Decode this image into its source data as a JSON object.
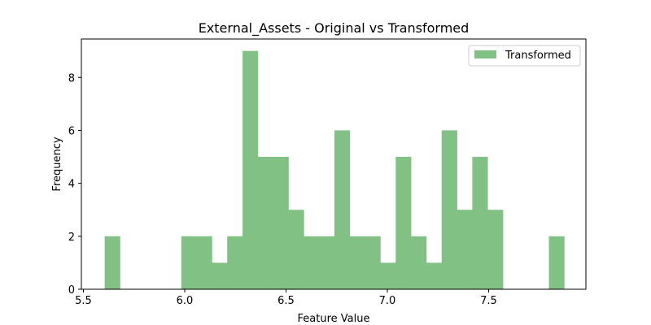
{
  "chart_data": {
    "type": "bar",
    "title": "External_Assets - Original vs Transformed",
    "xlabel": "Feature Value",
    "ylabel": "Frequency",
    "xlim": [
      5.49,
      7.98
    ],
    "ylim": [
      0,
      9.45
    ],
    "xticks": [
      5.5,
      6.0,
      6.5,
      7.0,
      7.5
    ],
    "xtick_labels": [
      "5.5",
      "6.0",
      "6.5",
      "7.0",
      "7.5"
    ],
    "yticks": [
      0,
      2,
      4,
      6,
      8
    ],
    "ytick_labels": [
      "0",
      "2",
      "4",
      "6",
      "8"
    ],
    "grid": false,
    "legend_position": "top-right",
    "series": [
      {
        "name": "Transformed",
        "color": "#81c184",
        "bin_start": 5.605,
        "bin_width": 0.0756,
        "values": [
          2,
          0,
          0,
          0,
          0,
          2,
          2,
          1,
          2,
          9,
          5,
          5,
          3,
          2,
          2,
          6,
          2,
          2,
          1,
          5,
          2,
          1,
          6,
          3,
          5,
          3,
          0,
          0,
          0,
          2
        ]
      }
    ]
  }
}
